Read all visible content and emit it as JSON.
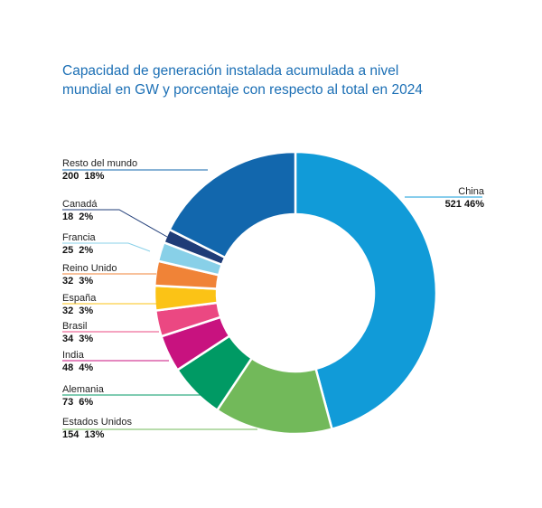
{
  "title_lines": [
    "Capacidad de generación instalada acumulada a nivel",
    "mundial en GW y porcentaje con respecto al total en 2024"
  ],
  "chart_data": {
    "type": "pie",
    "variant": "donut",
    "title": "Capacidad de generación instalada acumulada a nivel mundial en GW y porcentaje con respecto al total en 2024",
    "unit": "GW",
    "slices": [
      {
        "label": "China",
        "value": 521,
        "percent": "46%",
        "color": "#119bd8"
      },
      {
        "label": "Estados Unidos",
        "value": 154,
        "percent": "13%",
        "color": "#72b95a"
      },
      {
        "label": "Alemania",
        "value": 73,
        "percent": "6%",
        "color": "#009a64"
      },
      {
        "label": "India",
        "value": 48,
        "percent": "4%",
        "color": "#c8127f"
      },
      {
        "label": "Brasil",
        "value": 34,
        "percent": "3%",
        "color": "#eb4882"
      },
      {
        "label": "España",
        "value": 32,
        "percent": "3%",
        "color": "#fbc316"
      },
      {
        "label": "Reino Unido",
        "value": 32,
        "percent": "3%",
        "color": "#f08337"
      },
      {
        "label": "Francia",
        "value": 25,
        "percent": "2%",
        "color": "#88d0e8"
      },
      {
        "label": "Canadá",
        "value": 18,
        "percent": "2%",
        "color": "#1f3c77"
      },
      {
        "label": "Resto del mundo",
        "value": 200,
        "percent": "18%",
        "color": "#1267ad"
      }
    ]
  }
}
